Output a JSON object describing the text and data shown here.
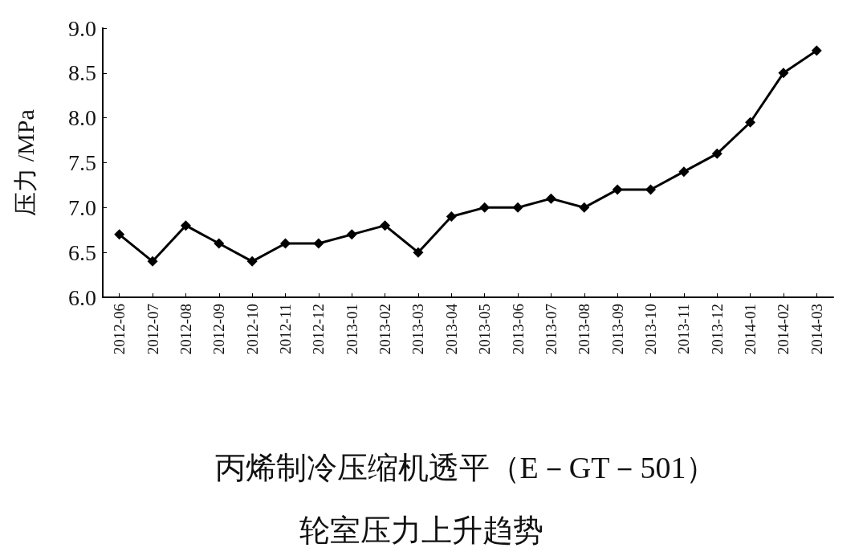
{
  "chart_data": {
    "type": "line",
    "title": "丙烯制冷压缩机透平（E－GT－501）",
    "subtitle": "轮室压力上升趋势",
    "ylabel": "压力 /MPa",
    "categories": [
      "2012-06",
      "2012-07",
      "2012-08",
      "2012-09",
      "2012-10",
      "2012-11",
      "2012-12",
      "2013-01",
      "2013-02",
      "2013-03",
      "2013-04",
      "2013-05",
      "2013-06",
      "2013-07",
      "2013-08",
      "2013-09",
      "2013-10",
      "2013-11",
      "2013-12",
      "2014-01",
      "2014-02",
      "2014-03"
    ],
    "series": [
      {
        "color": "#000000",
        "values": [
          6.7,
          6.4,
          6.8,
          6.6,
          6.4,
          6.6,
          6.6,
          6.7,
          6.8,
          6.5,
          6.9,
          7.0,
          7.0,
          7.1,
          7.0,
          7.2,
          7.2,
          7.4,
          7.6,
          7.95,
          8.5,
          8.75
        ]
      }
    ],
    "ylim": [
      6.0,
      9.0
    ],
    "yticks": [
      {
        "value": 6,
        "label": "6.0"
      },
      {
        "value": 6.5,
        "label": "6.5"
      },
      {
        "value": 7,
        "label": "7.0"
      },
      {
        "value": 7.5,
        "label": "7.5"
      },
      {
        "value": 8,
        "label": "8.0"
      },
      {
        "value": 8.5,
        "label": "8.5"
      },
      {
        "value": 9,
        "label": "9.0"
      }
    ],
    "grid": false,
    "marker": "diamond",
    "line_style": "solid"
  }
}
